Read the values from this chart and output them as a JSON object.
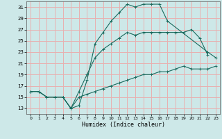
{
  "xlabel": "Humidex (Indice chaleur)",
  "xlim": [
    -0.5,
    23.5
  ],
  "ylim": [
    12,
    32
  ],
  "xticks": [
    0,
    1,
    2,
    3,
    4,
    5,
    6,
    7,
    8,
    9,
    10,
    11,
    12,
    13,
    14,
    15,
    16,
    17,
    18,
    19,
    20,
    21,
    22,
    23
  ],
  "yticks": [
    13,
    15,
    17,
    19,
    21,
    23,
    25,
    27,
    29,
    31
  ],
  "bg_color": "#cde8e8",
  "grid_color": "#e8b0b0",
  "line_color": "#1a6b5e",
  "series": [
    {
      "x": [
        0,
        1,
        2,
        3,
        4,
        5,
        6,
        7,
        8,
        9,
        10,
        11,
        12,
        13,
        14,
        15,
        16,
        17,
        22,
        23
      ],
      "y": [
        16,
        16,
        15,
        15,
        15,
        13,
        13.5,
        18,
        24.5,
        26.5,
        28.5,
        30,
        31.5,
        31,
        31.5,
        31.5,
        31.5,
        28.5,
        23,
        22
      ]
    },
    {
      "x": [
        0,
        1,
        2,
        3,
        4,
        5,
        6,
        7,
        8,
        9,
        10,
        11,
        12,
        13,
        14,
        15,
        16,
        17,
        18,
        19,
        20,
        21,
        22
      ],
      "y": [
        16,
        16,
        15,
        15,
        15,
        13,
        16,
        19,
        22,
        23.5,
        24.5,
        25.5,
        26.5,
        26,
        26.5,
        26.5,
        26.5,
        26.5,
        26.5,
        26.5,
        27,
        25.5,
        22.5
      ]
    },
    {
      "x": [
        0,
        1,
        2,
        3,
        4,
        5,
        6,
        7,
        8,
        9,
        10,
        11,
        12,
        13,
        14,
        15,
        16,
        17,
        18,
        19,
        20,
        21,
        22,
        23
      ],
      "y": [
        16,
        16,
        15,
        15,
        15,
        13,
        15,
        15.5,
        16,
        16.5,
        17,
        17.5,
        18,
        18.5,
        19,
        19,
        19.5,
        19.5,
        20,
        20.5,
        20,
        20,
        20,
        20.5
      ]
    }
  ]
}
